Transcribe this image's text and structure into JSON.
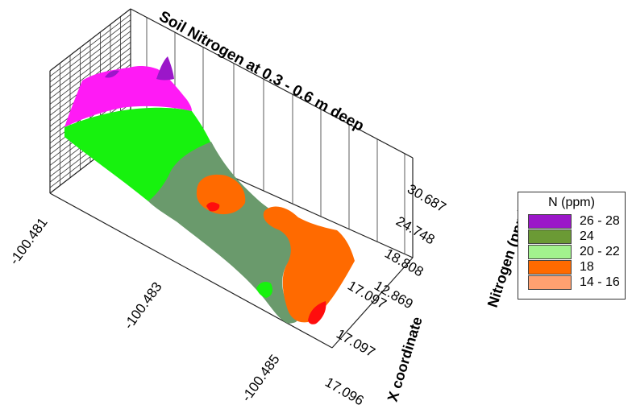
{
  "chart_data": {
    "type": "surface-3d",
    "title": "Soil Nitrogen at 0.3 - 0.6 m deep",
    "x_axis": {
      "title": "X coordinate",
      "ticks": [
        "17.096",
        "17.097",
        "17.097"
      ]
    },
    "y_axis": {
      "title": "",
      "ticks": [
        "-100.481",
        "-100.483",
        "-100.485"
      ]
    },
    "z_axis": {
      "title": "Nitrogen (ppm)",
      "ticks": [
        "12.869",
        "18.808",
        "24.748",
        "30.687"
      ],
      "range": [
        12.869,
        30.687
      ]
    },
    "legend": {
      "title": "N (ppm)",
      "placement": "right",
      "entries": [
        {
          "label": "26 - 28",
          "color": "#9b17c9"
        },
        {
          "label": "24",
          "color": "#6b9a35"
        },
        {
          "label": "20 - 22",
          "color": "#a2f28d"
        },
        {
          "label": "18",
          "color": "#ff6a00"
        },
        {
          "label": "14 - 16",
          "color": "#ffa070"
        }
      ]
    },
    "surface_zones": [
      {
        "zone": "magenta",
        "color": "#ff1af5"
      },
      {
        "zone": "bright-green",
        "color": "#17f20e"
      },
      {
        "zone": "grey-green",
        "color": "#6a9a6c"
      },
      {
        "zone": "orange",
        "color": "#ff6a00"
      },
      {
        "zone": "red-peak",
        "color": "#ff0d0d"
      },
      {
        "zone": "purple-peak",
        "color": "#9b17c9"
      }
    ]
  }
}
